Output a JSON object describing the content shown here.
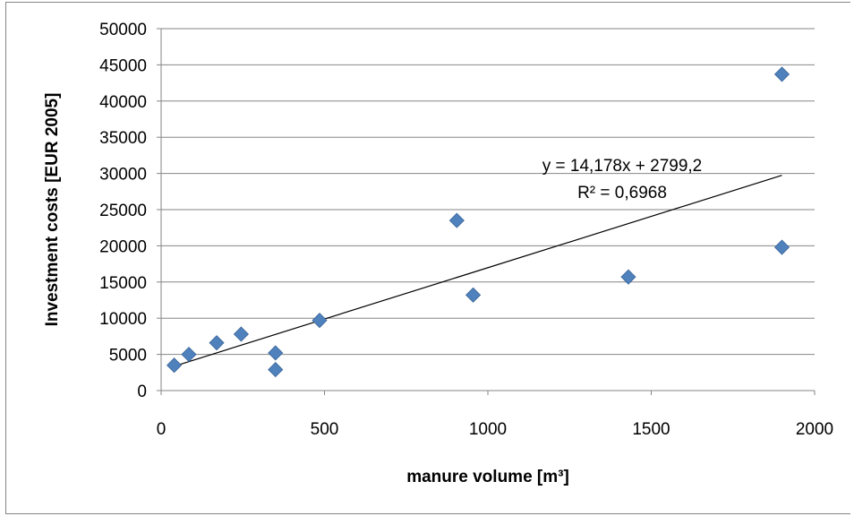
{
  "chart_data": {
    "type": "scatter",
    "xlabel": "manure volume [m³]",
    "ylabel": "Investment costs [EUR 2005]",
    "xlim": [
      0,
      2000
    ],
    "ylim": [
      0,
      50000
    ],
    "x_ticks": [
      "0",
      "500",
      "1000",
      "1500",
      "2000"
    ],
    "y_ticks": [
      "0",
      "5000",
      "10000",
      "15000",
      "20000",
      "25000",
      "30000",
      "35000",
      "40000",
      "45000",
      "50000"
    ],
    "grid": "horizontal",
    "marker_color": "#4F81BD",
    "trendline_color": "#000000",
    "points": [
      {
        "x": 40,
        "y": 3500
      },
      {
        "x": 85,
        "y": 5000
      },
      {
        "x": 170,
        "y": 6600
      },
      {
        "x": 245,
        "y": 7800
      },
      {
        "x": 350,
        "y": 5200
      },
      {
        "x": 350,
        "y": 2900
      },
      {
        "x": 485,
        "y": 9700
      },
      {
        "x": 905,
        "y": 23500
      },
      {
        "x": 955,
        "y": 13200
      },
      {
        "x": 1430,
        "y": 15700
      },
      {
        "x": 1900,
        "y": 43700
      },
      {
        "x": 1900,
        "y": 19800
      }
    ],
    "trendline": {
      "slope": 14.178,
      "intercept": 2799.2,
      "x_range": [
        40,
        1900
      ]
    },
    "equation": "y = 14,178x + 2799,2",
    "r_squared": "R² = 0,6968"
  }
}
